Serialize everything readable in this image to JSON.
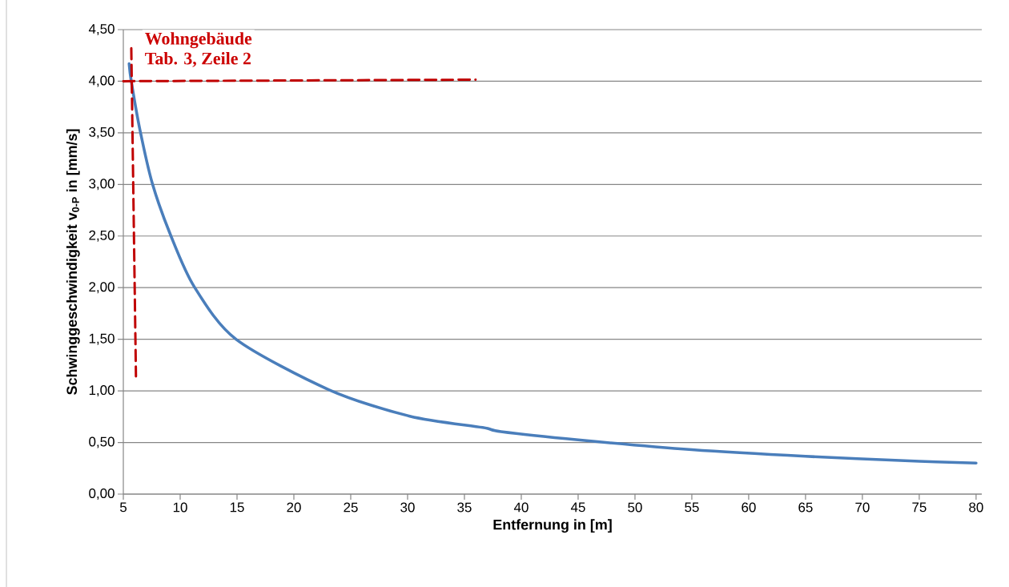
{
  "chart_data": {
    "type": "line",
    "xlabel": "Entfernung in [m]",
    "ylabel": "Schwinggeschwindigkeit v$_{0-P}$ in [mm/s]",
    "annotations": [
      "Wohngebäude",
      "Tab. 3, Zeile 2"
    ],
    "xlim": [
      5,
      80.5
    ],
    "ylim": [
      0,
      4.5
    ],
    "xticks": [
      5,
      10,
      15,
      20,
      25,
      30,
      35,
      40,
      45,
      50,
      55,
      60,
      65,
      70,
      75,
      80
    ],
    "yticks": [
      {
        "value": 0,
        "label": "0,00"
      },
      {
        "value": 0.5,
        "label": "0,50"
      },
      {
        "value": 1,
        "label": "1,00"
      },
      {
        "value": 1.5,
        "label": "1,50"
      },
      {
        "value": 2,
        "label": "2,00"
      },
      {
        "value": 2.5,
        "label": "2,50"
      },
      {
        "value": 3,
        "label": "3,00"
      },
      {
        "value": 3.5,
        "label": "3,50"
      },
      {
        "value": 4,
        "label": "4,00"
      },
      {
        "value": 4.5,
        "label": "4,50"
      }
    ],
    "grid": "y",
    "series": [
      {
        "color": "#4a7ebb",
        "line_style": "solid",
        "x": [
          5.51,
          5.7,
          6.46,
          7.55,
          9.19,
          11.23,
          14.91,
          23.1,
          30.19,
          36.59,
          38.21,
          45,
          55,
          65,
          75,
          80
        ],
        "values": [
          4.17,
          4.0,
          3.53,
          3.01,
          2.5,
          2.01,
          1.5,
          1.01,
          0.755,
          0.645,
          0.605,
          0.525,
          0.43,
          0.366,
          0.318,
          0.3
        ]
      },
      {
        "color": "#c00000",
        "line_style": "dashed",
        "x": [
          5.7,
          6.11
        ],
        "values": [
          4.32,
          1.14
        ]
      },
      {
        "color": "#c00000",
        "line_style": "dashed",
        "x": [
          5,
          35.98
        ],
        "values": [
          4.0,
          4.015
        ]
      }
    ]
  }
}
